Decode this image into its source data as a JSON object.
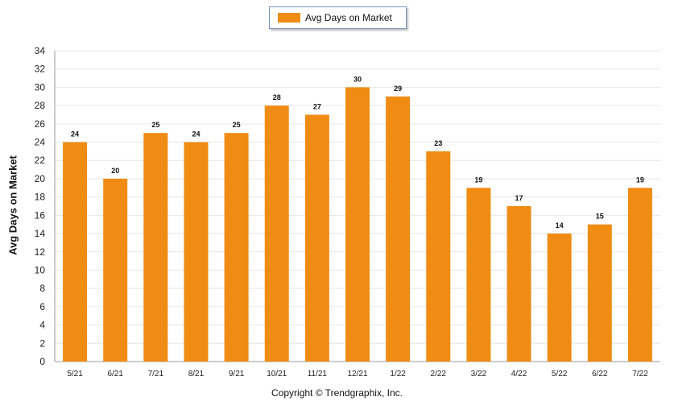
{
  "chart_data": {
    "type": "bar",
    "categories": [
      "5/21",
      "6/21",
      "7/21",
      "8/21",
      "9/21",
      "10/21",
      "11/21",
      "12/21",
      "1/22",
      "2/22",
      "3/22",
      "4/22",
      "5/22",
      "6/22",
      "7/22"
    ],
    "series": [
      {
        "name": "Avg Days on Market",
        "values": [
          24,
          20,
          25,
          24,
          25,
          28,
          27,
          30,
          29,
          23,
          19,
          17,
          14,
          15,
          19
        ]
      }
    ],
    "xlabel": "",
    "ylabel": "Avg Days on Market",
    "ylim": [
      0,
      34
    ],
    "yticks": [
      0,
      2,
      4,
      6,
      8,
      10,
      12,
      14,
      16,
      18,
      20,
      22,
      24,
      26,
      28,
      30,
      32,
      34
    ],
    "grid": true,
    "legend_position": "top-center",
    "bar_color": "#f08c14",
    "data_labels": true
  },
  "footer": {
    "copyright": "Copyright © Trendgraphix, Inc."
  }
}
